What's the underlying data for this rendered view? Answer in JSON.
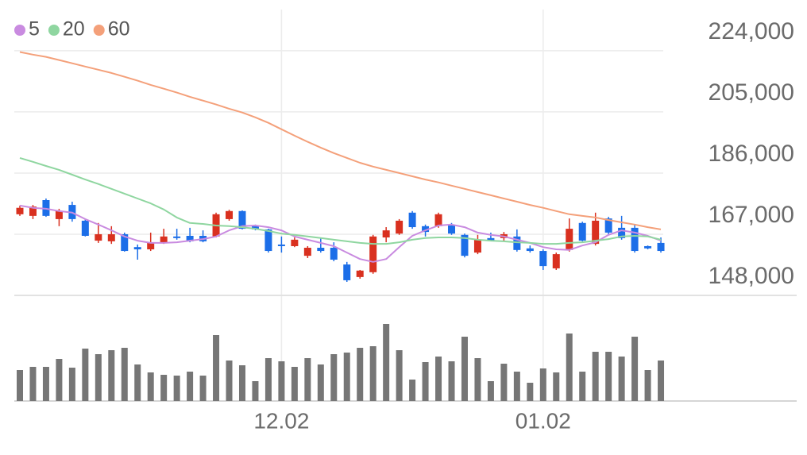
{
  "chart_data": {
    "type": "candlestick",
    "categories": [
      null,
      null,
      null,
      null,
      null,
      null,
      null,
      null,
      null,
      null,
      null,
      null,
      null,
      null,
      null,
      null,
      null,
      null,
      null,
      null,
      "12.02",
      null,
      null,
      null,
      null,
      null,
      null,
      null,
      null,
      null,
      null,
      null,
      null,
      null,
      null,
      null,
      null,
      null,
      null,
      null,
      "01.02",
      null,
      null,
      null,
      null,
      null,
      null,
      null,
      null,
      null
    ],
    "open": [
      173200,
      172700,
      177600,
      171700,
      176100,
      171200,
      165000,
      164800,
      167000,
      163000,
      162300,
      164300,
      166300,
      166500,
      166500,
      166300,
      171700,
      174200,
      169500,
      168500,
      163800,
      163300,
      160300,
      162800,
      162800,
      157600,
      153700,
      155200,
      166000,
      167200,
      173700,
      169500,
      169500,
      169700,
      166800,
      161300,
      165800,
      165800,
      166300,
      162600,
      161800,
      156400,
      162100,
      170500,
      164000,
      171900,
      169000,
      169000,
      163300,
      164300
    ],
    "high": [
      175900,
      176100,
      178100,
      174900,
      177100,
      171700,
      170500,
      169500,
      167500,
      163800,
      167500,
      168700,
      168700,
      169000,
      168200,
      173700,
      174600,
      174400,
      170000,
      168700,
      166300,
      166000,
      163300,
      165800,
      164500,
      158400,
      155900,
      166800,
      169200,
      171700,
      174200,
      170000,
      173700,
      170500,
      167200,
      166800,
      167500,
      167700,
      168500,
      163500,
      162300,
      161300,
      171900,
      170900,
      173700,
      172400,
      172700,
      170000,
      163500,
      166000
    ],
    "low": [
      172700,
      171700,
      172400,
      169500,
      170900,
      166300,
      164300,
      164000,
      161600,
      159100,
      161800,
      164000,
      165300,
      164500,
      164500,
      166000,
      171200,
      168500,
      168200,
      161300,
      161300,
      163000,
      159600,
      161300,
      158600,
      152200,
      153200,
      154700,
      164500,
      166800,
      168700,
      166300,
      169000,
      166800,
      159800,
      160800,
      164800,
      165000,
      161600,
      161300,
      155900,
      155900,
      161600,
      164800,
      163500,
      167000,
      165300,
      161300,
      162300,
      161300
    ],
    "close": [
      175200,
      175600,
      172700,
      174200,
      171700,
      166500,
      167000,
      167000,
      161800,
      162300,
      164300,
      166300,
      165800,
      164800,
      164800,
      173200,
      174200,
      168700,
      168500,
      161800,
      163300,
      165300,
      162800,
      161800,
      159100,
      152700,
      155700,
      166300,
      168200,
      171200,
      169200,
      167700,
      173200,
      167200,
      160300,
      165300,
      165000,
      167000,
      162100,
      161800,
      157100,
      160800,
      168700,
      165000,
      171200,
      167500,
      165800,
      161800,
      162600,
      161800
    ],
    "up_color": "#d9301f",
    "down_color": "#1c6ee8",
    "ylim": [
      148000,
      236800
    ],
    "yticks": [
      {
        "value": 148000,
        "label": "148,000"
      },
      {
        "value": 167000,
        "label": "167,000"
      },
      {
        "value": 186000,
        "label": "186,000"
      },
      {
        "value": 205000,
        "label": "205,000"
      },
      {
        "value": 224000,
        "label": "224,000"
      }
    ],
    "grid": true,
    "legend": "top-left",
    "series": [
      {
        "name": "5",
        "color": "#c98be0",
        "values": [
          175900,
          175200,
          174900,
          174200,
          173700,
          171700,
          170000,
          168200,
          166300,
          165000,
          164300,
          164300,
          164500,
          165000,
          165500,
          166300,
          168200,
          169500,
          169700,
          169200,
          168200,
          166300,
          165300,
          164300,
          163300,
          161300,
          159300,
          158400,
          159300,
          163000,
          166500,
          168200,
          169700,
          170000,
          169200,
          167500,
          166800,
          166300,
          165300,
          164300,
          163000,
          162300,
          162100,
          163500,
          164500,
          166800,
          168200,
          167500,
          166500,
          165000
        ]
      },
      {
        "name": "20",
        "color": "#8fd6a0",
        "values": [
          190700,
          189500,
          188200,
          187000,
          185500,
          184000,
          182600,
          181100,
          179600,
          178100,
          176600,
          174700,
          172200,
          170500,
          170200,
          169700,
          169500,
          169200,
          168700,
          168000,
          167200,
          166800,
          166300,
          165800,
          165300,
          164800,
          164300,
          164000,
          164000,
          164500,
          165300,
          165800,
          166000,
          166000,
          165800,
          165300,
          165000,
          164800,
          164500,
          164300,
          164000,
          164000,
          164300,
          164500,
          165000,
          165500,
          166300,
          166500,
          166300,
          165300
        ]
      },
      {
        "name": "60",
        "color": "#f4a07a",
        "values": [
          223600,
          222800,
          222100,
          221100,
          220100,
          219100,
          218100,
          217100,
          215900,
          214700,
          213400,
          212200,
          211000,
          209700,
          208500,
          207300,
          206000,
          204800,
          203300,
          201600,
          199600,
          197600,
          195700,
          193900,
          192200,
          190700,
          189200,
          188000,
          187000,
          186000,
          185000,
          184000,
          183100,
          182100,
          181100,
          180100,
          179100,
          178100,
          177100,
          176100,
          175200,
          174200,
          173200,
          172700,
          172200,
          171400,
          170700,
          170000,
          169200,
          168500
        ]
      }
    ],
    "volume": {
      "color": "#767676",
      "ylim": [
        0,
        133
      ],
      "values": [
        39,
        43,
        43,
        53,
        42,
        66,
        59,
        64,
        67,
        46,
        36,
        33,
        32,
        37,
        32,
        83,
        51,
        45,
        25,
        54,
        50,
        43,
        54,
        46,
        59,
        61,
        67,
        69,
        97,
        64,
        27,
        49,
        56,
        50,
        81,
        54,
        25,
        47,
        37,
        23,
        41,
        36,
        85,
        37,
        62,
        62,
        56,
        81,
        39,
        51
      ]
    }
  }
}
